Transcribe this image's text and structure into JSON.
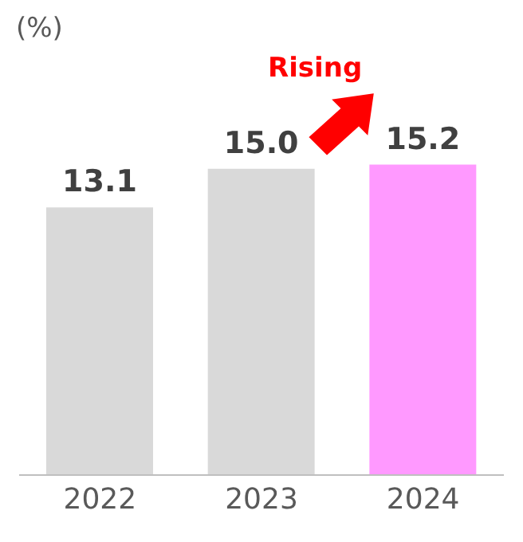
{
  "chart_data": {
    "type": "bar",
    "ylabel": "(%)",
    "categories": [
      "2022",
      "2023",
      "2024"
    ],
    "values": [
      13.1,
      15.0,
      15.2
    ],
    "value_labels": [
      "13.1",
      "15.0",
      "15.2"
    ],
    "colors": [
      "#d9d9d9",
      "#d9d9d9",
      "#ff99ff"
    ],
    "tick_labels": "x",
    "annotations": [
      "Rising"
    ]
  }
}
